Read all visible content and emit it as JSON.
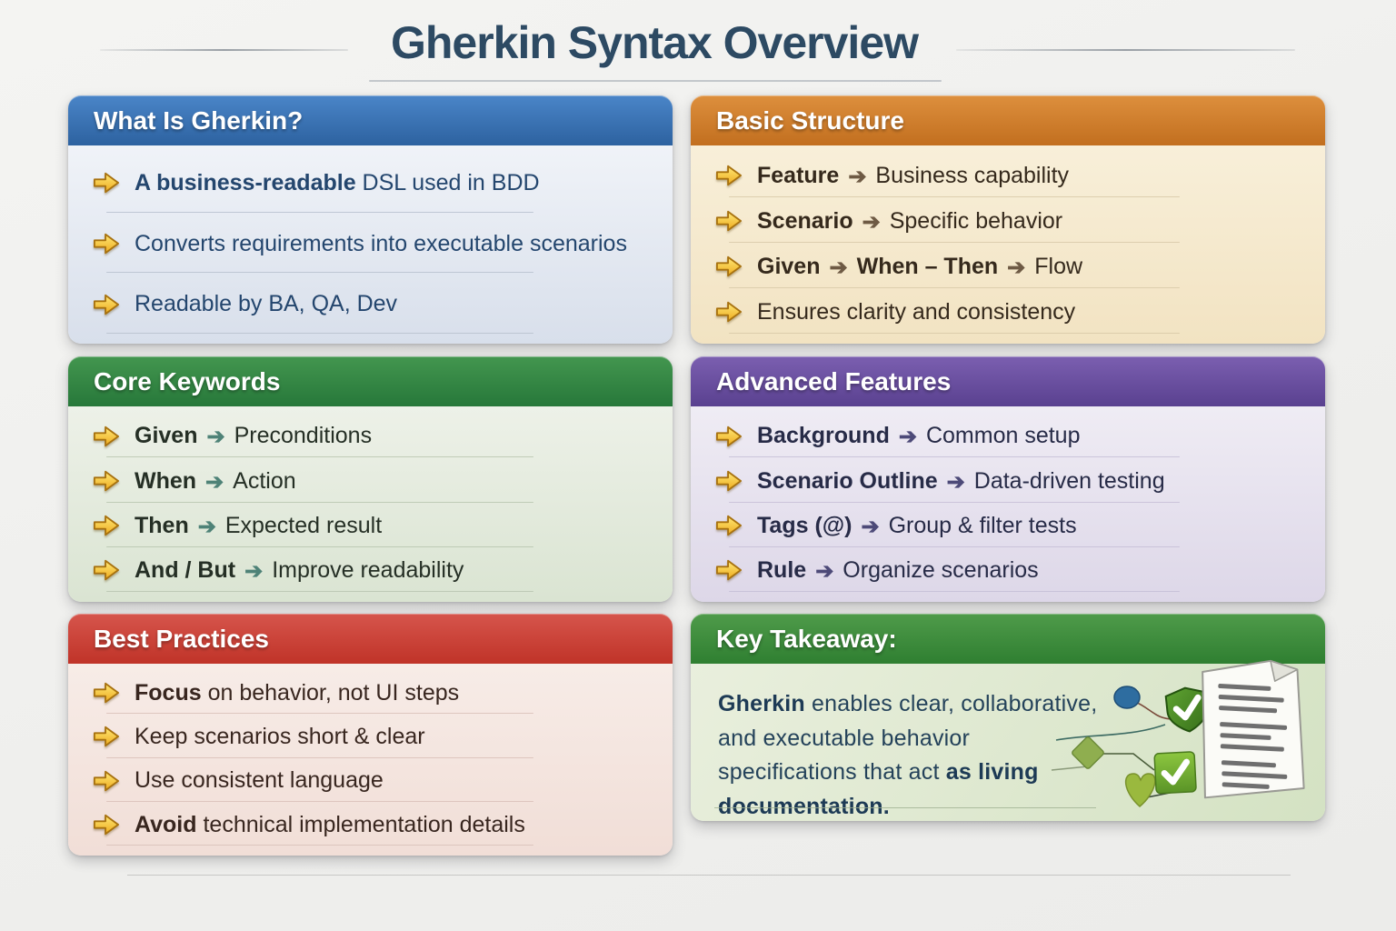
{
  "page": {
    "title": "Gherkin Syntax Overview",
    "title_color": "#2d4a63",
    "background_color": "#f1f1ef"
  },
  "bullet_arrow": {
    "fill_top": "#ffe876",
    "fill_bottom": "#edaa1e",
    "stroke": "#a8720f"
  },
  "panels": [
    {
      "key": "what-is-gherkin",
      "title": "What Is Gherkin?",
      "header_color": "#3a74b6",
      "text_color": "#24466e",
      "arrow_color": "#5a6b7d",
      "arrow_glyph": "➔",
      "items": [
        {
          "segments": [
            {
              "t": "A business-readable",
              "b": true
            },
            {
              "t": " DSL used in BDD",
              "b": false
            }
          ]
        },
        {
          "segments": [
            {
              "t": "Converts requirements into executable scenarios",
              "b": false
            }
          ]
        },
        {
          "segments": [
            {
              "t": "Readable by BA, QA, Dev",
              "b": false
            }
          ]
        }
      ]
    },
    {
      "key": "basic-structure",
      "title": "Basic Structure",
      "header_color": "#cd7a29",
      "text_color": "#35291c",
      "arrow_color": "#6e5a44",
      "arrow_glyph": "➔",
      "items": [
        {
          "segments": [
            {
              "t": "Feature",
              "b": true
            },
            {
              "arrow": true
            },
            {
              "t": "Business capability",
              "b": false
            }
          ]
        },
        {
          "segments": [
            {
              "t": "Scenario",
              "b": true
            },
            {
              "arrow": true
            },
            {
              "t": "Specific behavior",
              "b": false
            }
          ]
        },
        {
          "segments": [
            {
              "t": "Given",
              "b": true
            },
            {
              "arrow": true
            },
            {
              "t": "When – Then",
              "b": true
            },
            {
              "arrow": true
            },
            {
              "t": "Flow",
              "b": false
            }
          ]
        },
        {
          "segments": [
            {
              "t": "Ensures clarity and consistency",
              "b": false
            }
          ]
        }
      ]
    },
    {
      "key": "core-keywords",
      "title": "Core Keywords",
      "header_color": "#2f8745",
      "text_color": "#252f25",
      "arrow_color": "#4e8277",
      "arrow_glyph": "➔",
      "items": [
        {
          "segments": [
            {
              "t": "Given",
              "b": true
            },
            {
              "arrow": true
            },
            {
              "t": "Preconditions",
              "b": false
            }
          ]
        },
        {
          "segments": [
            {
              "t": "When",
              "b": true
            },
            {
              "arrow": true
            },
            {
              "t": "Action",
              "b": false
            }
          ]
        },
        {
          "segments": [
            {
              "t": "Then",
              "b": true
            },
            {
              "arrow": true
            },
            {
              "t": "Expected result",
              "b": false
            }
          ]
        },
        {
          "segments": [
            {
              "t": "And / But",
              "b": true
            },
            {
              "arrow": true
            },
            {
              "t": "Improve readability",
              "b": false
            }
          ]
        }
      ]
    },
    {
      "key": "advanced-features",
      "title": "Advanced Features",
      "header_color": "#684a9e",
      "text_color": "#272b47",
      "arrow_color": "#4d4a78",
      "arrow_glyph": "➔",
      "items": [
        {
          "segments": [
            {
              "t": "Background",
              "b": true
            },
            {
              "arrow": true
            },
            {
              "t": "Common setup",
              "b": false
            }
          ]
        },
        {
          "segments": [
            {
              "t": "Scenario Outline",
              "b": true
            },
            {
              "arrow": true
            },
            {
              "t": "Data-driven testing",
              "b": false
            }
          ]
        },
        {
          "segments": [
            {
              "t": "Tags (@)",
              "b": true
            },
            {
              "arrow": true
            },
            {
              "t": "Group & filter tests",
              "b": false
            }
          ]
        },
        {
          "segments": [
            {
              "t": "Rule",
              "b": true
            },
            {
              "arrow": true
            },
            {
              "t": "Organize scenarios",
              "b": false
            }
          ]
        }
      ]
    },
    {
      "key": "best-practices",
      "title": "Best Practices",
      "header_color": "#c73a31",
      "text_color": "#38261f",
      "arrow_color": "#6e5a44",
      "arrow_glyph": "➔",
      "items": [
        {
          "segments": [
            {
              "t": "Focus",
              "b": true
            },
            {
              "t": " on behavior, not UI steps",
              "b": false
            }
          ]
        },
        {
          "segments": [
            {
              "t": "Keep scenarios short & clear",
              "b": false
            }
          ]
        },
        {
          "segments": [
            {
              "t": "Use consistent language",
              "b": false
            }
          ]
        },
        {
          "segments": [
            {
              "t": "Avoid",
              "b": true
            },
            {
              "t": " technical implementation details",
              "b": false
            }
          ]
        }
      ]
    }
  ],
  "takeaway": {
    "key": "key-takeaway",
    "title": "Key Takeaway:",
    "header_color": "#3f8f3c",
    "text_color": "#24425a",
    "segments": [
      {
        "t": "Gherkin",
        "b": true
      },
      {
        "t": " enables clear, collaborative, and executable behavior specifications that act ",
        "b": false
      },
      {
        "t": "as living documentation.",
        "b": true
      }
    ],
    "illustration_icons": [
      "document-icon",
      "shield-check-icon",
      "square-check-icon",
      "diamond-icon",
      "heart-icon",
      "flow-node-icon"
    ]
  }
}
